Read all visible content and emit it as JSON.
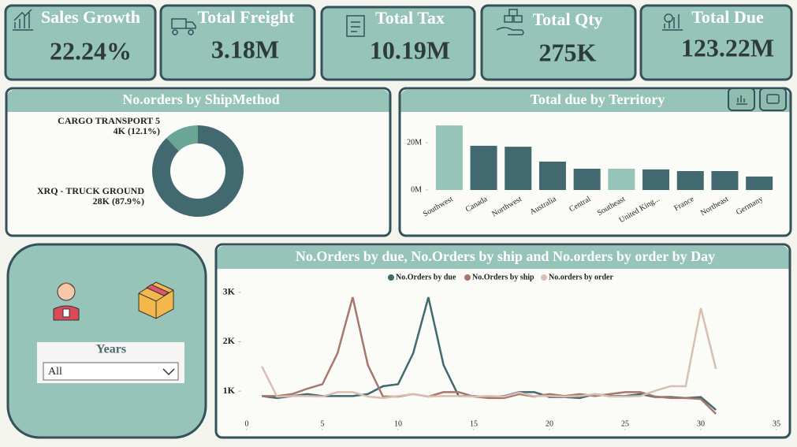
{
  "kpis": [
    {
      "title": "Sales Growth",
      "value": "22.24%"
    },
    {
      "title": "Total Freight",
      "value": "3.18M"
    },
    {
      "title": "Total Tax",
      "value": "10.19M"
    },
    {
      "title": "Total Qty",
      "value": "275K"
    },
    {
      "title": "Total Due",
      "value": "123.22M"
    }
  ],
  "chart_data": [
    {
      "type": "donut",
      "title": "No.orders by ShipMethod",
      "categories": [
        "CARGO TRANSPORT 5",
        "XRQ - TRUCK GROUND"
      ],
      "values": [
        3811,
        27659
      ],
      "value_labels": [
        "4K (12.1%)",
        "28K (87.9%)"
      ],
      "colors": [
        "#6aa595",
        "#41696f"
      ]
    },
    {
      "type": "bar",
      "title": "Total due by Territory",
      "categories": [
        "Southwest",
        "Canada",
        "Northwest",
        "Australia",
        "Central",
        "Southeast",
        "United King...",
        "France",
        "Northeast",
        "Germany"
      ],
      "values": [
        27300000,
        18700000,
        18300000,
        12000000,
        9000000,
        9000000,
        8700000,
        8000000,
        8000000,
        5700000
      ],
      "colors": [
        "#97c4b8",
        "#41696f",
        "#41696f",
        "#41696f",
        "#41696f",
        "#97c4b8",
        "#41696f",
        "#41696f",
        "#41696f",
        "#41696f"
      ],
      "ylim": [
        0,
        30000000
      ],
      "yticks": [
        {
          "value": 0,
          "label": "0M"
        },
        {
          "value": 20000000,
          "label": "20M"
        }
      ]
    },
    {
      "type": "line",
      "title": "No.Orders by due, No.Orders by ship and No.orders by order by Day",
      "x": [
        1,
        2,
        3,
        4,
        5,
        6,
        7,
        8,
        9,
        10,
        11,
        12,
        13,
        14,
        15,
        16,
        17,
        18,
        19,
        20,
        21,
        22,
        23,
        24,
        25,
        26,
        27,
        28,
        29,
        30,
        31
      ],
      "series": [
        {
          "name": "No.Orders by due",
          "color": "#41696f",
          "values": [
            900,
            860,
            900,
            940,
            900,
            900,
            900,
            940,
            1100,
            1140,
            1770,
            2900,
            1530,
            900,
            900,
            880,
            900,
            980,
            980,
            880,
            880,
            860,
            940,
            900,
            900,
            940,
            880,
            880,
            860,
            880,
            620
          ]
        },
        {
          "name": "No.Orders by ship",
          "color": "#a9766b",
          "values": [
            900,
            900,
            940,
            1050,
            1140,
            1770,
            2900,
            1530,
            890,
            890,
            940,
            890,
            980,
            980,
            890,
            860,
            860,
            940,
            890,
            940,
            900,
            940,
            900,
            940,
            980,
            980,
            890,
            860,
            860,
            840,
            540
          ]
        },
        {
          "name": "No.orders by order",
          "color": "#d9bfb2",
          "values": [
            1500,
            890,
            900,
            900,
            890,
            980,
            980,
            890,
            860,
            900,
            940,
            890,
            900,
            900,
            890,
            900,
            890,
            970,
            900,
            900,
            890,
            900,
            940,
            890,
            890,
            900,
            1010,
            1100,
            1100,
            2680,
            1450
          ]
        }
      ],
      "xlim": [
        0,
        35
      ],
      "xticks": [
        0,
        5,
        10,
        15,
        20,
        25,
        30,
        35
      ],
      "ylim": [
        380,
        3300
      ],
      "yticks": [
        {
          "value": 1000,
          "label": "1K"
        },
        {
          "value": 2000,
          "label": "2K"
        },
        {
          "value": 3000,
          "label": "3K"
        }
      ],
      "legend": "top"
    }
  ],
  "slicer": {
    "title": "Years",
    "selected": "All"
  }
}
